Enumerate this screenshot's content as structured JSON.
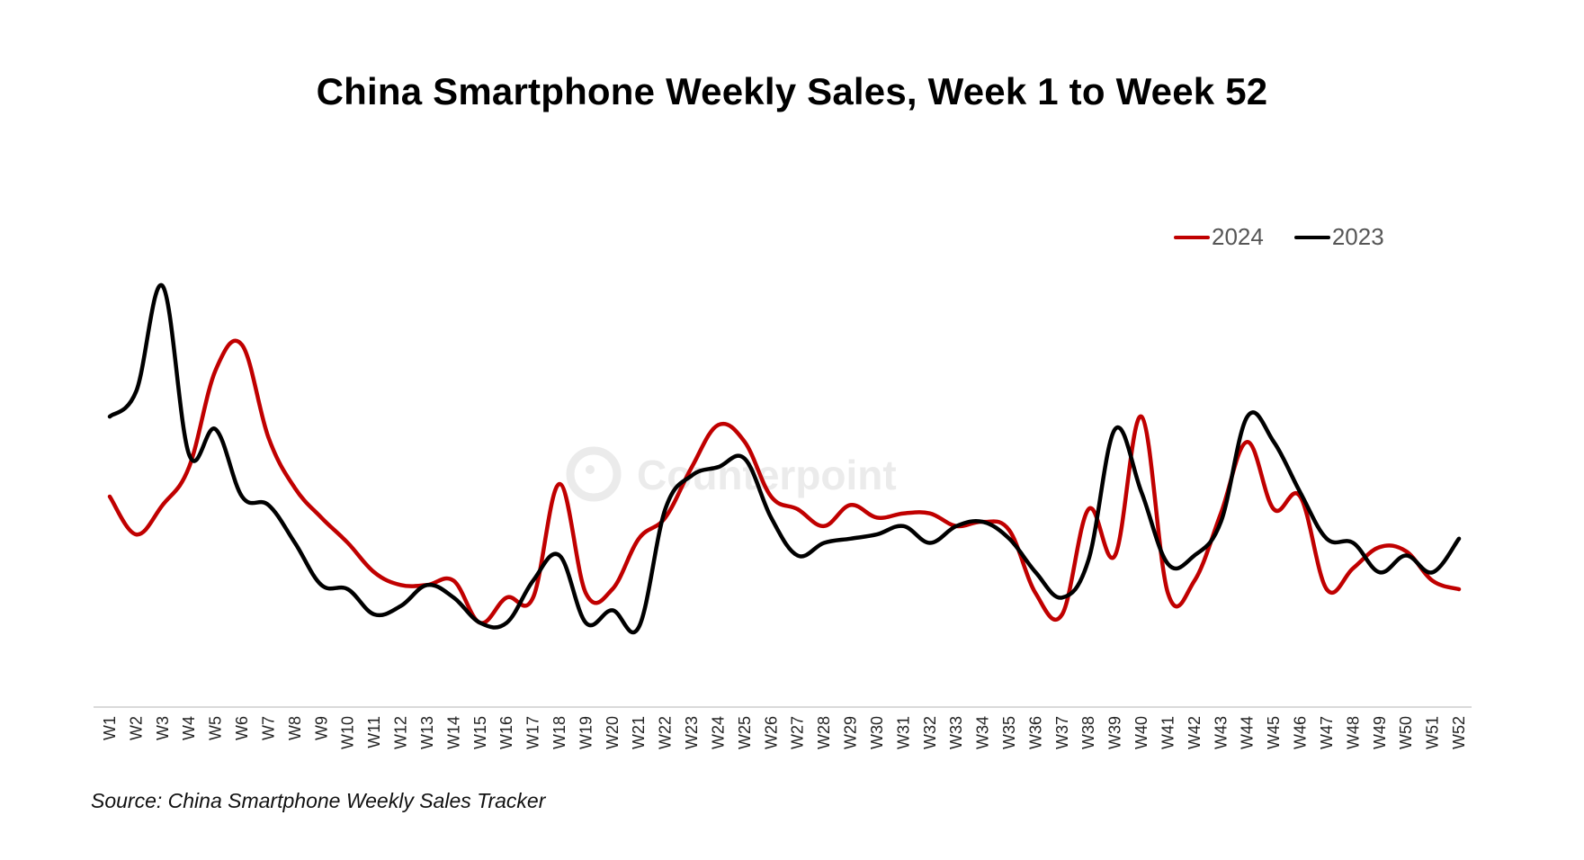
{
  "chart_data": {
    "type": "line",
    "title": "China Smartphone Weekly Sales, Week 1 to Week 52",
    "xlabel": "",
    "ylabel": "",
    "y_axis_note": "No y-axis scale shown; values are relative index estimates (0-100)",
    "ylim": [
      0,
      100
    ],
    "grid": false,
    "legend_position": "top-right",
    "categories": [
      "W1",
      "W2",
      "W3",
      "W4",
      "W5",
      "W6",
      "W7",
      "W8",
      "W9",
      "W10",
      "W11",
      "W12",
      "W13",
      "W14",
      "W15",
      "W16",
      "W17",
      "W18",
      "W19",
      "W20",
      "W21",
      "W22",
      "W23",
      "W24",
      "W25",
      "W26",
      "W27",
      "W28",
      "W29",
      "W30",
      "W31",
      "W32",
      "W33",
      "W34",
      "W35",
      "W36",
      "W37",
      "W38",
      "W39",
      "W40",
      "W41",
      "W42",
      "W43",
      "W44",
      "W45",
      "W46",
      "W47",
      "W48",
      "W49",
      "W50",
      "W51",
      "W52"
    ],
    "series": [
      {
        "name": "2024",
        "color": "#c00000",
        "values": [
          50,
          41,
          48,
          57,
          80,
          86,
          64,
          52,
          45,
          39,
          32,
          29,
          29,
          30,
          20,
          26,
          26,
          53,
          27,
          28,
          40,
          45,
          57,
          67,
          63,
          50,
          47,
          43,
          48,
          45,
          46,
          46,
          43,
          44,
          42,
          27,
          22,
          47,
          36,
          69,
          27,
          30,
          46,
          63,
          47,
          50,
          28,
          33,
          38,
          37,
          30,
          28
        ]
      },
      {
        "name": "2023",
        "color": "#000000",
        "values": [
          69,
          75,
          100,
          60,
          66,
          50,
          48,
          39,
          29,
          28,
          22,
          24,
          29,
          26,
          20,
          20,
          30,
          36,
          20,
          23,
          19,
          47,
          55,
          57,
          59,
          45,
          36,
          39,
          40,
          41,
          43,
          39,
          43,
          44,
          40,
          32,
          26,
          35,
          66,
          51,
          34,
          36,
          44,
          69,
          63,
          51,
          40,
          39,
          32,
          36,
          32,
          40
        ]
      }
    ],
    "watermark": "Counterpoint",
    "source": "Source: China Smartphone Weekly Sales Tracker"
  }
}
